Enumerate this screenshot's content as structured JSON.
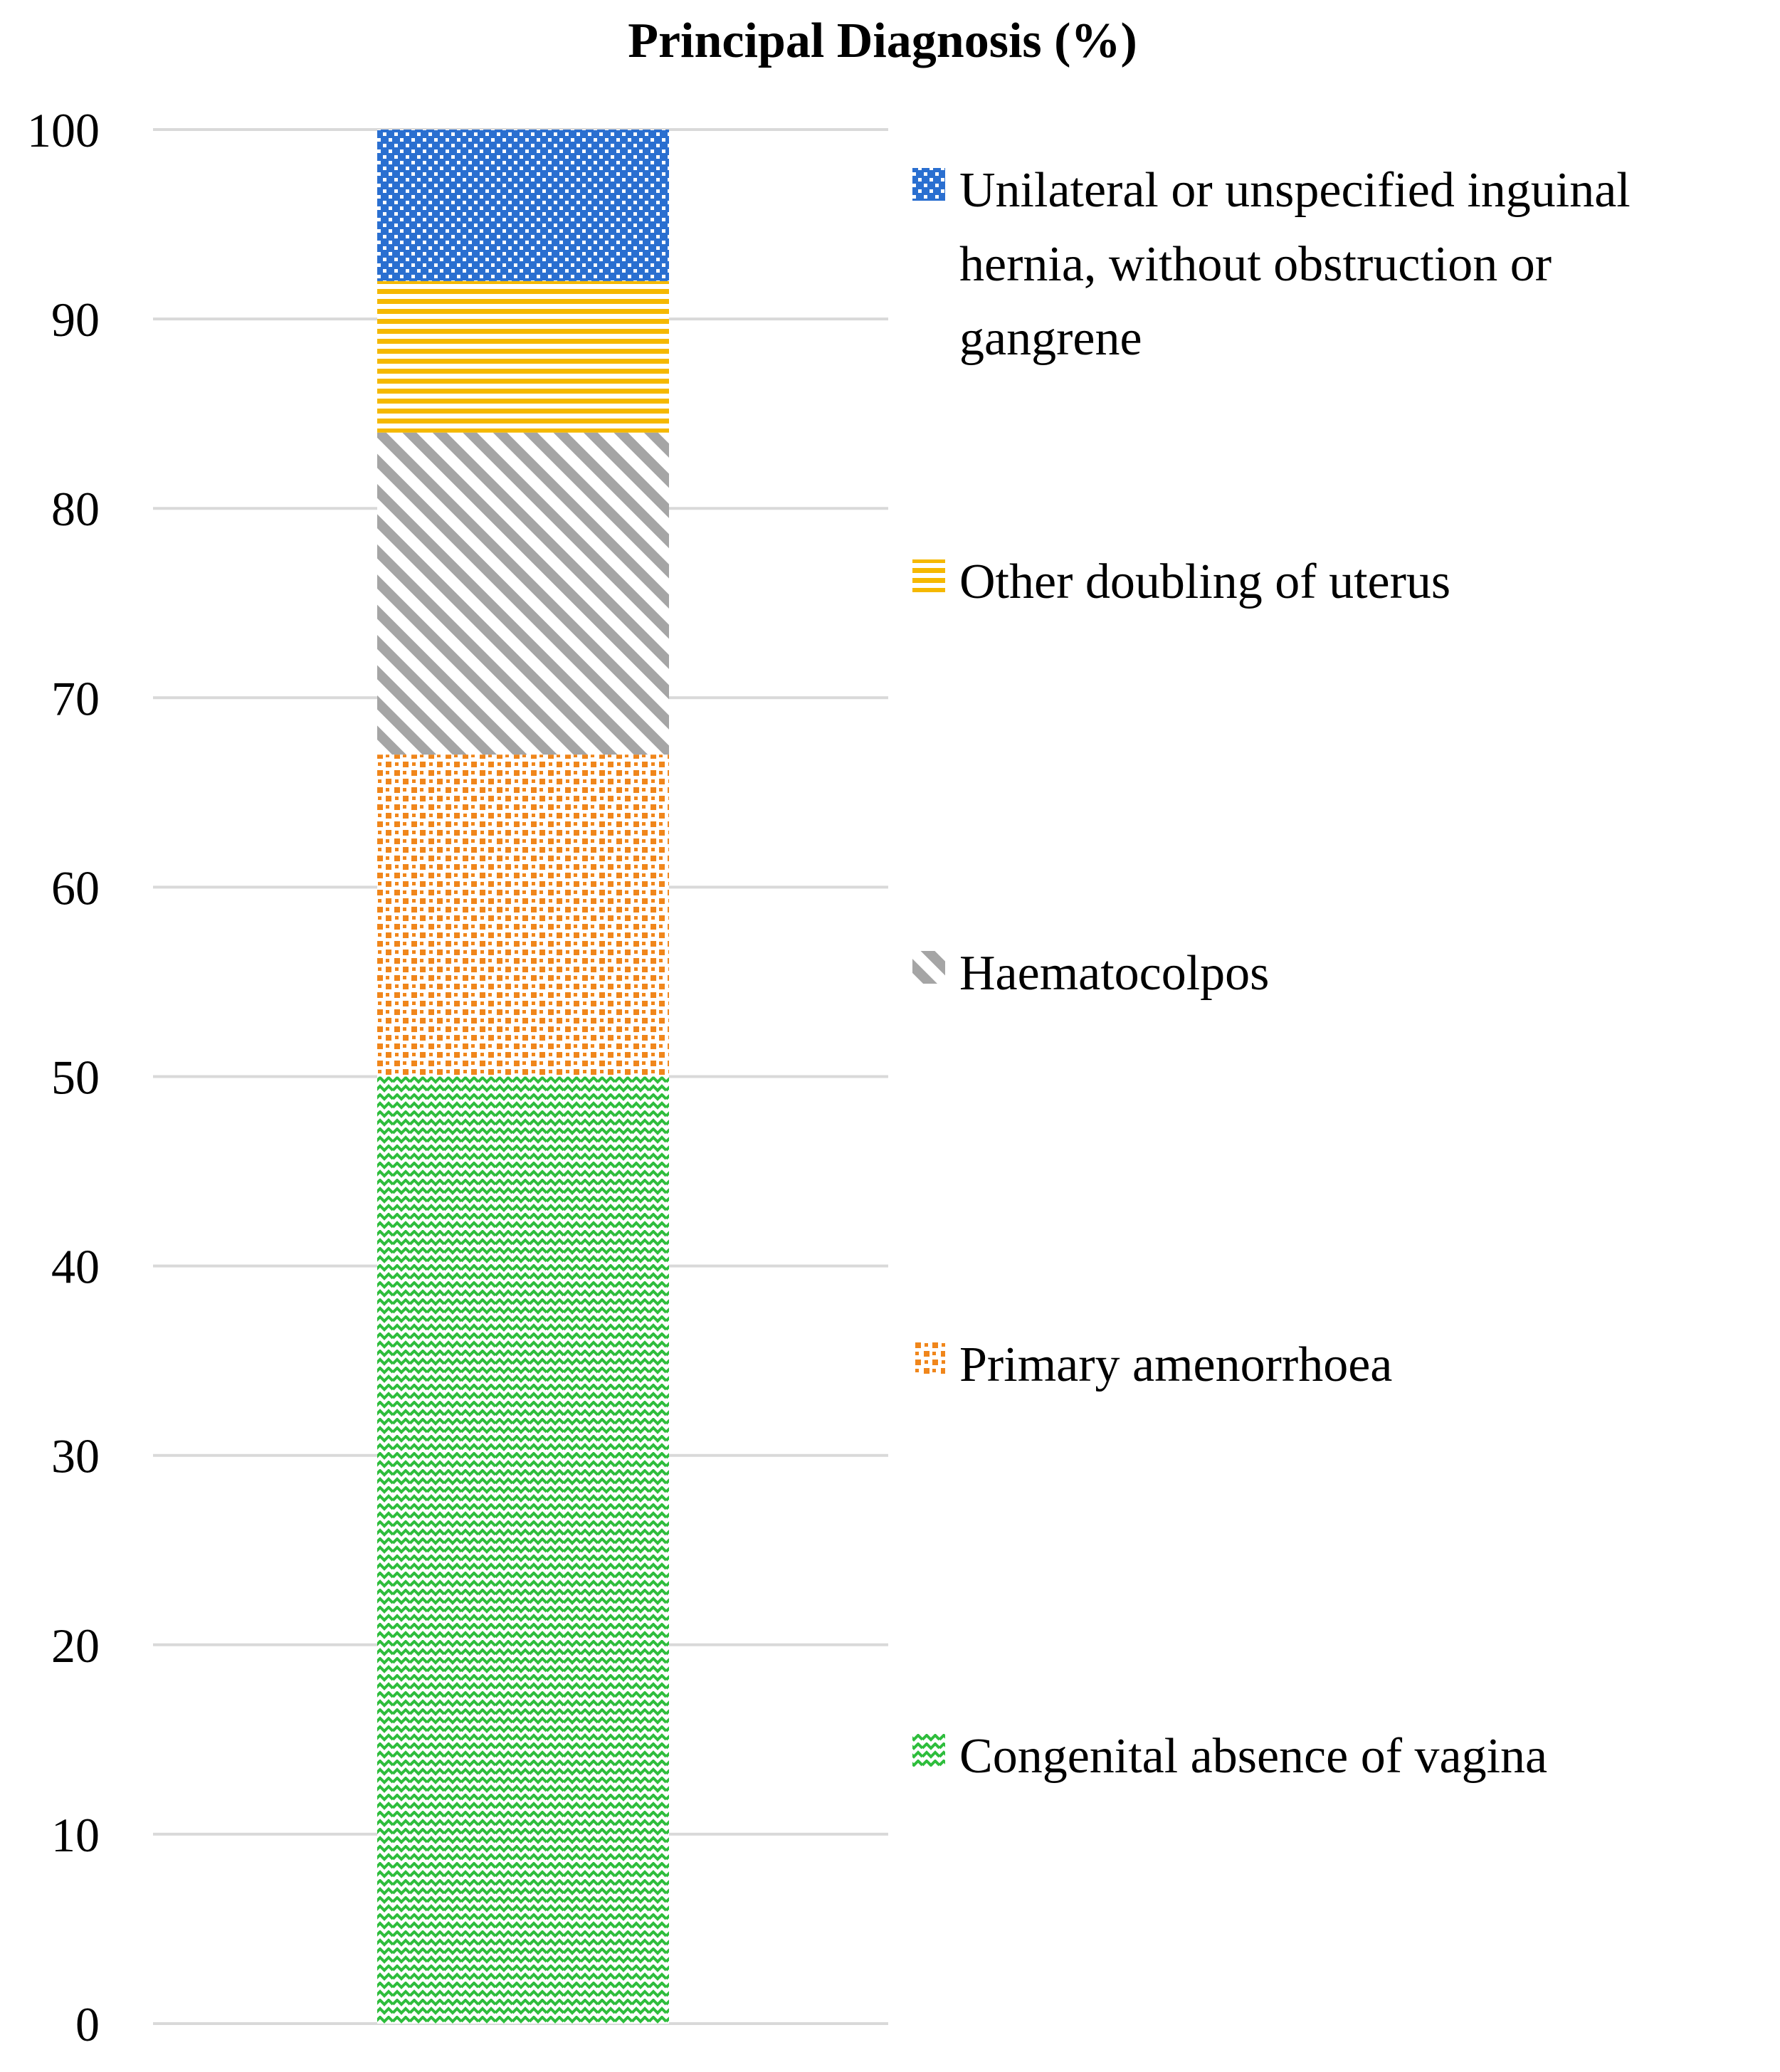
{
  "chart_data": {
    "type": "bar",
    "stacked": true,
    "title": "Principal Diagnosis (%)",
    "xlabel": "",
    "ylabel": "",
    "ylim": [
      0,
      100
    ],
    "yticks": [
      0,
      10,
      20,
      30,
      40,
      50,
      60,
      70,
      80,
      90,
      100
    ],
    "grid": true,
    "legend_position": "right",
    "series": [
      {
        "name": "Congenital absence of vagina",
        "value": 50,
        "color": "#2ebd3c",
        "pattern": "zigzag"
      },
      {
        "name": "Primary amenorrhoea",
        "value": 17,
        "color": "#f0861b",
        "pattern": "dotted"
      },
      {
        "name": "Haematocolpos",
        "value": 17,
        "color": "#a5a5a5",
        "pattern": "diagonal"
      },
      {
        "name": "Other doubling of uterus",
        "value": 8,
        "color": "#f5b800",
        "pattern": "horizontal"
      },
      {
        "name": "Unilateral or unspecified inguinal hernia, without obstruction or gangrene",
        "value": 8,
        "color": "#2a6fd0",
        "pattern": "checker"
      }
    ],
    "legend_order": [
      4,
      3,
      2,
      1,
      0
    ],
    "legend_lines": [
      [
        "Unilateral or unspecified inguinal",
        "hernia, without obstruction or",
        "gangrene"
      ],
      [
        "Other doubling of uterus"
      ],
      [
        "Haematocolpos"
      ],
      [
        "Primary amenorrhoea"
      ],
      [
        "Congenital absence of vagina"
      ]
    ]
  }
}
